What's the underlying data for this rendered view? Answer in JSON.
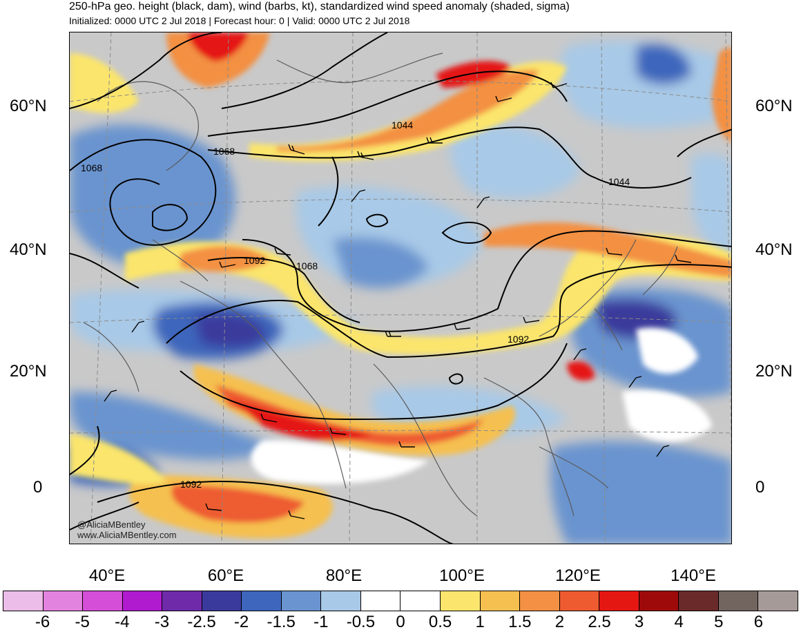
{
  "header": {
    "title": "250-hPa geo. height (black, dam), wind (barbs, kt), standardized wind speed anomaly (shaded, sigma)",
    "subtitle": "Initialized: 0000 UTC 2 Jul 2018 | Forecast hour: 0 | Valid: 0000 UTC 2 Jul 2018"
  },
  "axes": {
    "lat_labels": [
      "60°N",
      "40°N",
      "20°N",
      "0"
    ],
    "lon_labels": [
      "40°E",
      "60°E",
      "80°E",
      "100°E",
      "120°E",
      "140°E"
    ]
  },
  "contour_labels": [
    "1068",
    "1068",
    "1044",
    "1044",
    "1092",
    "1068",
    "1092",
    "1092"
  ],
  "credit": [
    "@AliciaMBentley",
    "www.AliciaMBentley.com"
  ],
  "colorbar": {
    "colors": [
      "#ebbde8",
      "#e383e0",
      "#d54ed8",
      "#b01bd0",
      "#6f2aa9",
      "#3a3a9c",
      "#3d66bc",
      "#6a94cf",
      "#a8c9e7",
      "#ffffff",
      "#ffffff",
      "#fbe56c",
      "#f5c04f",
      "#f39043",
      "#ee5b30",
      "#e51713",
      "#9e0a0a",
      "#6b2a2a",
      "#72655f",
      "#a69a98"
    ],
    "labels": [
      "-6",
      "-5",
      "-4",
      "-3",
      "-2.5",
      "-2",
      "-1.5",
      "-1",
      "-0.5",
      "0",
      "0.5",
      "1",
      "1.5",
      "2",
      "2.5",
      "3",
      "4",
      "5",
      "6"
    ]
  }
}
